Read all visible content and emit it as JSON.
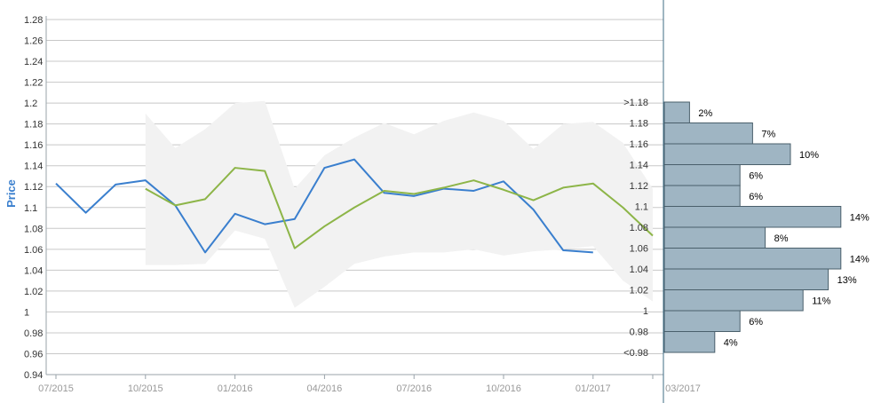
{
  "colors": {
    "series_blue": "#3a7fce",
    "series_green": "#8db548",
    "band_fill": "#f2f2f2",
    "hist_fill": "#9fb5c3",
    "hist_stroke": "#4a5f6b",
    "grid": "#c8c8c8",
    "divider": "#3f6c86",
    "ylabel": "#3a7fce"
  },
  "chart_data": [
    {
      "type": "line",
      "title": "",
      "xlabel": "",
      "ylabel": "Price",
      "ylim": [
        0.94,
        1.28
      ],
      "y_ticks": [
        "0.94",
        "0.96",
        "0.98",
        "1",
        "1.02",
        "1.04",
        "1.06",
        "1.08",
        "1.1",
        "1.12",
        "1.14",
        "1.16",
        "1.18",
        "1.2",
        "1.22",
        "1.24",
        "1.26",
        "1.28"
      ],
      "x_ticks": [
        "07/2015",
        "10/2015",
        "01/2016",
        "04/2016",
        "07/2016",
        "10/2016",
        "01/2017",
        "03/2017"
      ],
      "grid": true,
      "x": [
        "2015-07",
        "2015-08",
        "2015-09",
        "2015-10",
        "2015-11",
        "2015-12",
        "2016-01",
        "2016-02",
        "2016-03",
        "2016-04",
        "2016-05",
        "2016-06",
        "2016-07",
        "2016-08",
        "2016-09",
        "2016-10",
        "2016-11",
        "2016-12",
        "2017-01",
        "2017-02",
        "2017-03"
      ],
      "series": [
        {
          "color": "#3a7fce",
          "values": [
            1.123,
            1.095,
            1.122,
            1.126,
            1.102,
            1.057,
            1.094,
            1.084,
            1.089,
            1.138,
            1.146,
            1.114,
            1.111,
            1.118,
            1.116,
            1.125,
            1.098,
            1.059,
            1.057,
            null,
            null
          ]
        },
        {
          "color": "#8db548",
          "values": [
            null,
            null,
            null,
            1.118,
            1.102,
            1.108,
            1.138,
            1.135,
            1.061,
            1.082,
            1.1,
            1.116,
            1.113,
            1.119,
            1.126,
            1.117,
            1.107,
            1.119,
            1.123,
            1.1,
            1.073
          ]
        }
      ],
      "band": {
        "color": "#f2f2f2",
        "upper": [
          null,
          null,
          null,
          1.19,
          1.157,
          1.175,
          1.2,
          1.202,
          1.118,
          1.15,
          1.167,
          1.181,
          1.17,
          1.183,
          1.191,
          1.183,
          1.156,
          1.18,
          1.182,
          1.162,
          1.118
        ],
        "lower": [
          null,
          null,
          null,
          1.045,
          1.045,
          1.046,
          1.078,
          1.07,
          1.004,
          1.024,
          1.046,
          1.053,
          1.057,
          1.057,
          1.06,
          1.054,
          1.058,
          1.06,
          1.063,
          1.03,
          1.01
        ]
      }
    },
    {
      "type": "bar",
      "orientation": "horizontal",
      "categories": [
        ">1.18",
        "1.18",
        "1.16",
        "1.14",
        "1.12",
        "1.1",
        "1.08",
        "1.06",
        "1.04",
        "1.02",
        "1",
        "0.98",
        "<0.98"
      ],
      "values": [
        2,
        7,
        10,
        6,
        6,
        14,
        8,
        14,
        13,
        11,
        6,
        4,
        null
      ],
      "labels": [
        "2%",
        "7%",
        "10%",
        "6%",
        "6%",
        "14%",
        "8%",
        "14%",
        "13%",
        "11%",
        "6%",
        "4%",
        ""
      ],
      "color": "#9fb5c3"
    }
  ]
}
